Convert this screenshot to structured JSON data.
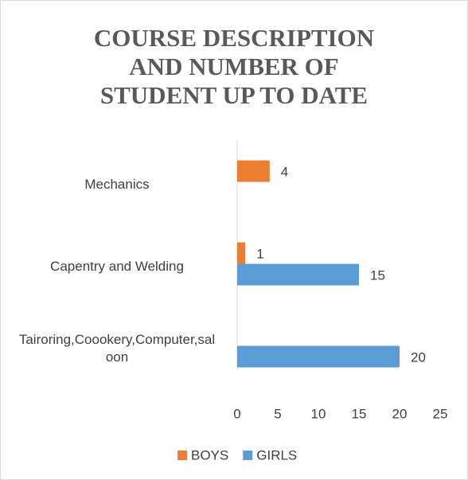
{
  "chart_data": {
    "type": "barh",
    "title": [
      "COURSE DESCRIPTION",
      "AND NUMBER OF",
      "STUDENT UP TO DATE"
    ],
    "categories": [
      "Mechanics",
      "Capentry and Welding",
      "Tairoring,Coookery,Computer,saloon"
    ],
    "series": [
      {
        "name": "BOYS",
        "color": "#ed7d31",
        "values": [
          4,
          1,
          null
        ]
      },
      {
        "name": "GIRLS",
        "color": "#5b9bd5",
        "values": [
          null,
          15,
          20
        ]
      }
    ],
    "xlim": [
      0,
      25
    ],
    "xticks": [
      0,
      5,
      10,
      15,
      20,
      25
    ],
    "grid": false,
    "legend": "bottom"
  }
}
